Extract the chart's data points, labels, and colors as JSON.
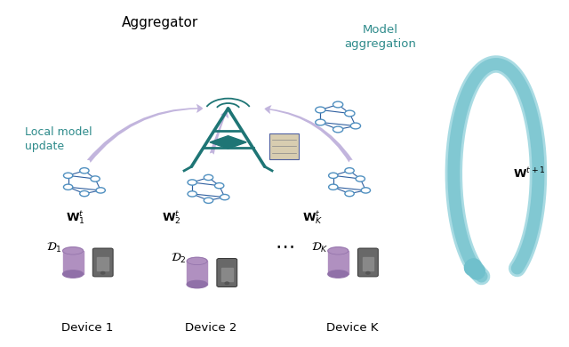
{
  "bg_color": "#ffffff",
  "teal_color": "#1e7575",
  "teal_arrow_color": "#70c0cc",
  "teal_arrow_fill": "#a0d8e0",
  "purple_arrow_color": "#b8a8d8",
  "node_color": "#5090c0",
  "node_edge": "#3060a0",
  "database_purple": "#b090c0",
  "database_dark": "#9070a8",
  "device_gray": "#686868",
  "device_screen": "#888888",
  "text_teal": "#2e8b8b",
  "aggregator_label": "Aggregator",
  "model_agg_label": "Model\naggregation",
  "local_model_label": "Local model\nupdate",
  "device_labels": [
    "Device 1",
    "Device 2",
    "Device K"
  ],
  "w_labels": [
    "$\\mathbf{W}_1^t$",
    "$\\mathbf{W}_2^t$",
    "$\\mathbf{W}_K^t$"
  ],
  "w_t1_label": "$\\mathbf{W}^{t+1}$"
}
